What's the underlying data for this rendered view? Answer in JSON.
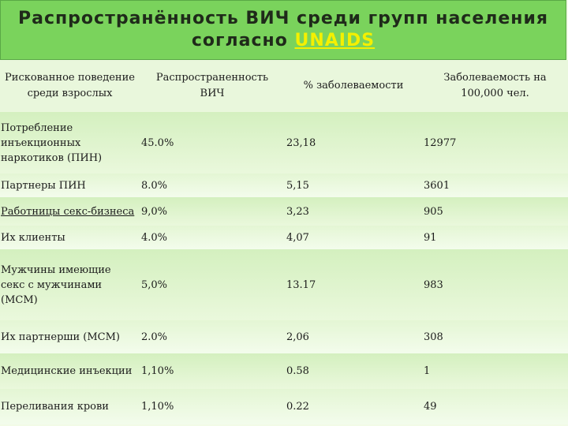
{
  "title": {
    "line1": "Распространённость ВИЧ среди групп населения",
    "line2_prefix": "согласно ",
    "line2_accent": "UNAIDS"
  },
  "table": {
    "headers": [
      "Рискованное поведение среди взрослых",
      "Распространенность ВИЧ",
      "% заболеваемости",
      "Заболеваемость на 100,000 чел."
    ],
    "rows": [
      {
        "group": "Потребление инъекционных наркотиков (ПИН)",
        "prevalence": "45.0%",
        "incidence_pct": "23,18",
        "per_100k": "12977"
      },
      {
        "group": "Партнеры ПИН",
        "prevalence": "8.0%",
        "incidence_pct": "5,15",
        "per_100k": "3601"
      },
      {
        "group": "Работницы секс-бизнеса",
        "prevalence": "9,0%",
        "incidence_pct": "3,23",
        "per_100k": "905"
      },
      {
        "group": "Их клиенты",
        "prevalence": "4.0%",
        "incidence_pct": "4,07",
        "per_100k": "91"
      },
      {
        "group": "Мужчины имеющие секс с мужчинами (МСМ)",
        "prevalence": "5,0%",
        "incidence_pct": "13.17",
        "per_100k": "983"
      },
      {
        "group": "Их партнерши (МСМ)",
        "prevalence": "2.0%",
        "incidence_pct": "2,06",
        "per_100k": "308"
      },
      {
        "group": "Медицинские инъекции",
        "prevalence": "1,10%",
        "incidence_pct": "0.58",
        "per_100k": "1"
      },
      {
        "group": "Переливания крови",
        "prevalence": "1,10%",
        "incidence_pct": "0.22",
        "per_100k": "49"
      }
    ]
  },
  "colors": {
    "title_background": "#7ad35c",
    "title_accent": "#f4f000",
    "row_band": "#d4f0bf"
  }
}
